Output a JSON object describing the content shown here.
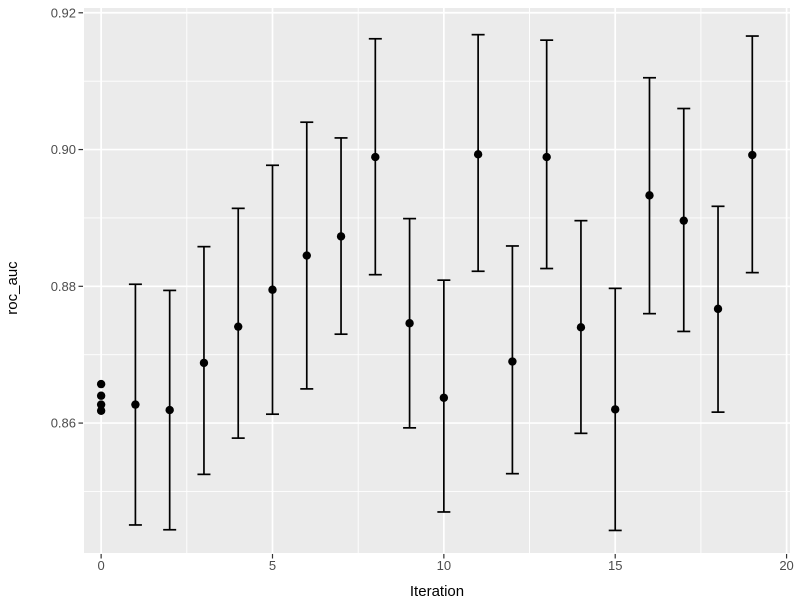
{
  "figure": {
    "background": "#FFFFFF",
    "panel_background": "#EBEBEB",
    "grid_color": "#FFFFFF",
    "mark_color": "#000000",
    "axis_text_color": "#4D4D4D",
    "axis_title_color": "#000000",
    "tick_mark_color": "#333333"
  },
  "chart_data": {
    "type": "scatter",
    "title": "",
    "xlabel": "Iteration",
    "ylabel": "roc_auc",
    "legend": "none",
    "grid": true,
    "xlim": [
      -0.5,
      20.1
    ],
    "ylim": [
      0.841,
      0.9207
    ],
    "x_ticks": {
      "values": [
        0,
        5,
        10,
        15,
        20
      ],
      "labels": [
        "0",
        "5",
        "10",
        "15",
        "20"
      ]
    },
    "y_ticks": {
      "values": [
        0.86,
        0.88,
        0.9,
        0.92
      ],
      "labels": [
        "0.86",
        "0.88",
        "0.90",
        "0.92"
      ]
    },
    "x_minor_gridlines": [
      2.5,
      7.5,
      12.5,
      17.5
    ],
    "y_minor_gridlines": [
      0.85,
      0.87,
      0.89,
      0.91
    ],
    "initial_points": {
      "x": 0,
      "values": [
        0.8657,
        0.864,
        0.8627,
        0.8618
      ]
    },
    "error_bars": [
      {
        "x": 1,
        "mean": 0.8627,
        "lower": 0.8451,
        "upper": 0.8803
      },
      {
        "x": 2,
        "mean": 0.8619,
        "lower": 0.8444,
        "upper": 0.8794
      },
      {
        "x": 3,
        "mean": 0.8688,
        "lower": 0.8525,
        "upper": 0.8858
      },
      {
        "x": 4,
        "mean": 0.8741,
        "lower": 0.8578,
        "upper": 0.8914
      },
      {
        "x": 5,
        "mean": 0.8795,
        "lower": 0.8613,
        "upper": 0.8977
      },
      {
        "x": 6,
        "mean": 0.8845,
        "lower": 0.865,
        "upper": 0.904
      },
      {
        "x": 7,
        "mean": 0.8873,
        "lower": 0.873,
        "upper": 0.9017
      },
      {
        "x": 8,
        "mean": 0.8989,
        "lower": 0.8817,
        "upper": 0.9162
      },
      {
        "x": 9,
        "mean": 0.8746,
        "lower": 0.8593,
        "upper": 0.8899
      },
      {
        "x": 10,
        "mean": 0.8637,
        "lower": 0.847,
        "upper": 0.8809
      },
      {
        "x": 11,
        "mean": 0.8993,
        "lower": 0.8822,
        "upper": 0.9168
      },
      {
        "x": 12,
        "mean": 0.869,
        "lower": 0.8526,
        "upper": 0.8859
      },
      {
        "x": 13,
        "mean": 0.8989,
        "lower": 0.8826,
        "upper": 0.916
      },
      {
        "x": 14,
        "mean": 0.874,
        "lower": 0.8585,
        "upper": 0.8896
      },
      {
        "x": 15,
        "mean": 0.862,
        "lower": 0.8443,
        "upper": 0.8797
      },
      {
        "x": 16,
        "mean": 0.8933,
        "lower": 0.876,
        "upper": 0.9105
      },
      {
        "x": 17,
        "mean": 0.8896,
        "lower": 0.8734,
        "upper": 0.906
      },
      {
        "x": 18,
        "mean": 0.8767,
        "lower": 0.8616,
        "upper": 0.8917
      },
      {
        "x": 19,
        "mean": 0.8992,
        "lower": 0.882,
        "upper": 0.9166
      }
    ]
  }
}
